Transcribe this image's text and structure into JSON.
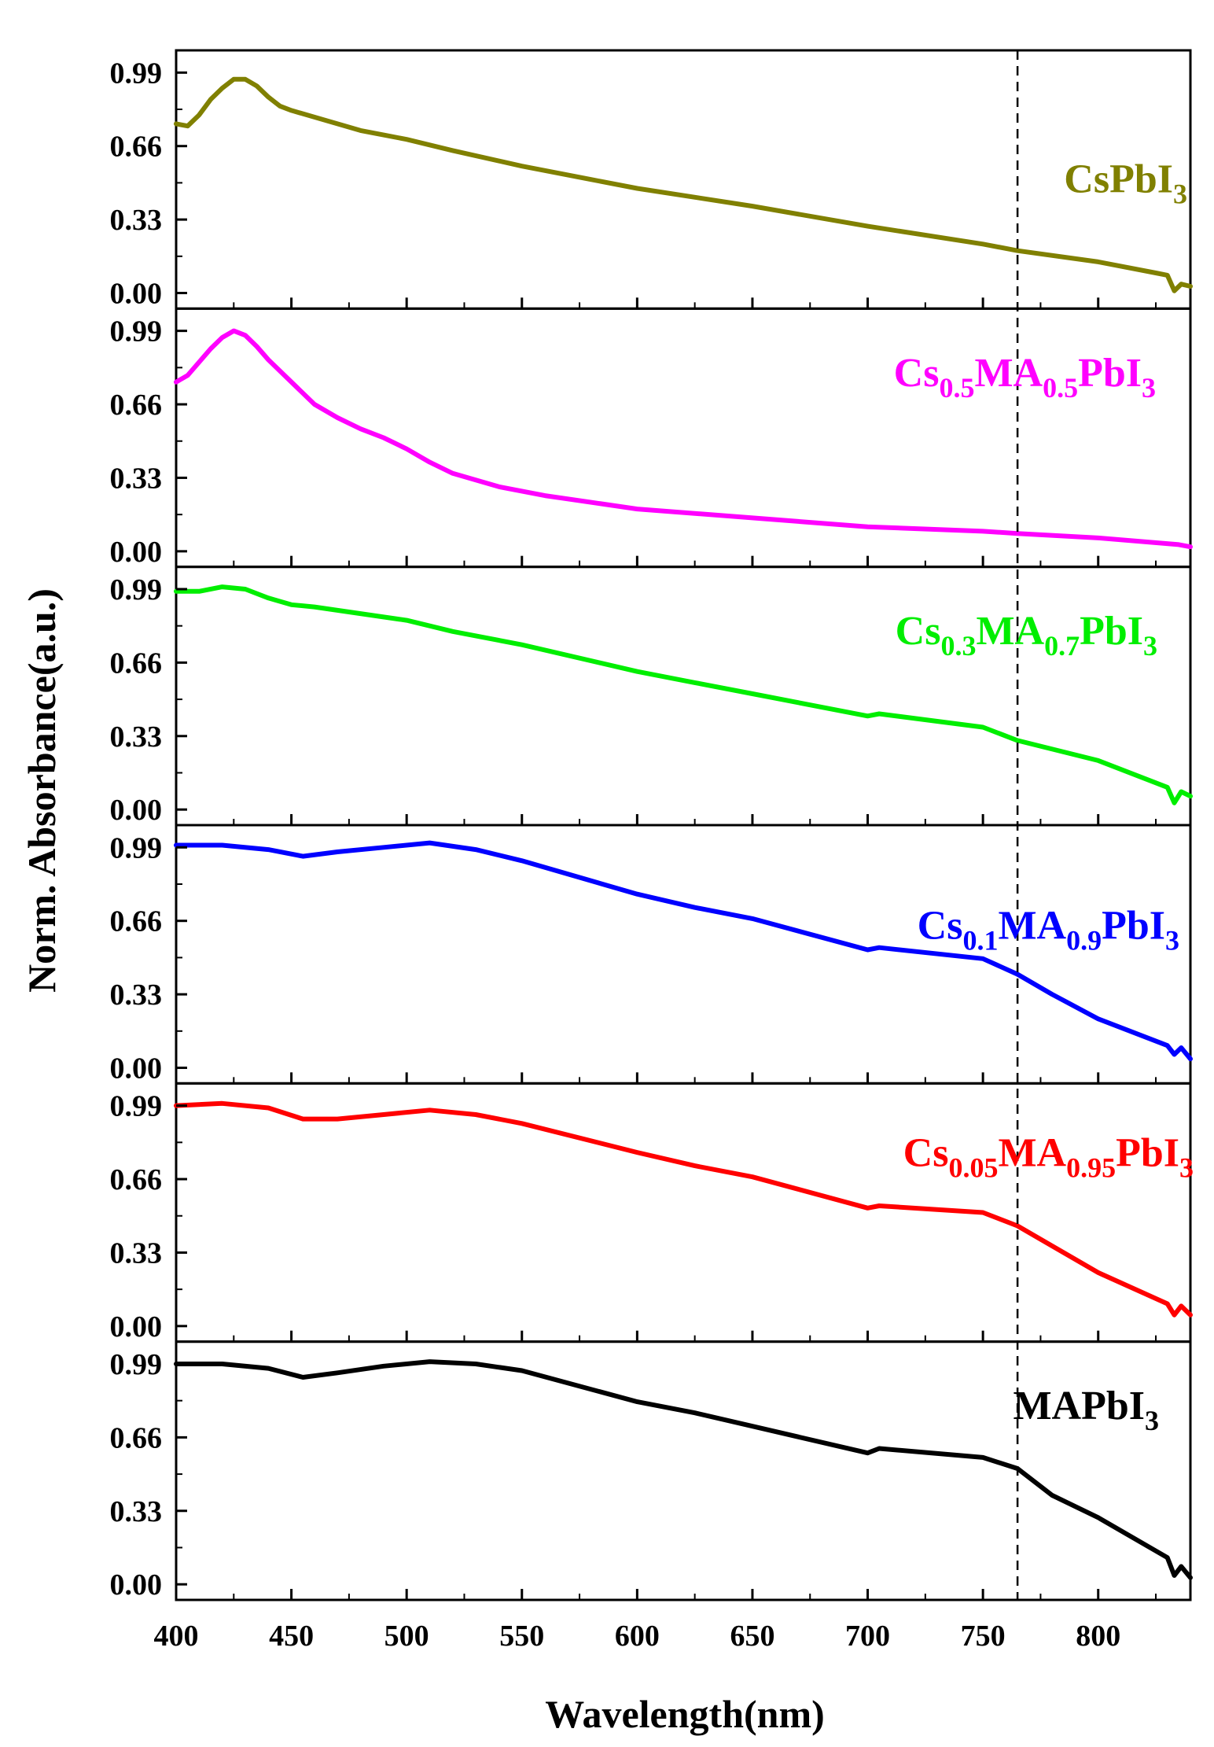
{
  "chart_data": {
    "type": "line",
    "layout": "stacked-panels",
    "xlabel": "Wavelength(nm)",
    "ylabel": "Norm. Absorbance(a.u.)",
    "xlim": [
      400,
      840
    ],
    "ylim": [
      -0.07,
      1.09
    ],
    "x_ticks": [
      400,
      450,
      500,
      550,
      600,
      650,
      700,
      750,
      800
    ],
    "y_ticks": [
      0.0,
      0.33,
      0.66,
      0.99
    ],
    "y_tick_labels": [
      "0.00",
      "0.33",
      "0.66",
      "0.99"
    ],
    "reference_line": {
      "x": 765,
      "style": "dashed",
      "color": "#000000"
    },
    "grid": false,
    "series": [
      {
        "name": "CsPbI3",
        "label_parts": [
          {
            "text": "CsPbI",
            "sub": false
          },
          {
            "text": "3",
            "sub": true
          }
        ],
        "color": "#808000",
        "x": [
          400,
          405,
          410,
          415,
          420,
          425,
          430,
          435,
          440,
          445,
          450,
          460,
          470,
          480,
          490,
          500,
          520,
          550,
          580,
          600,
          650,
          700,
          750,
          765,
          800,
          825,
          830,
          833,
          836,
          840
        ],
        "y": [
          0.76,
          0.75,
          0.8,
          0.87,
          0.92,
          0.96,
          0.96,
          0.93,
          0.88,
          0.84,
          0.82,
          0.79,
          0.76,
          0.73,
          0.71,
          0.69,
          0.64,
          0.57,
          0.51,
          0.47,
          0.39,
          0.3,
          0.22,
          0.19,
          0.14,
          0.09,
          0.08,
          0.01,
          0.04,
          0.03
        ]
      },
      {
        "name": "Cs0.5MA0.5PbI3",
        "label_parts": [
          {
            "text": "Cs",
            "sub": false
          },
          {
            "text": "0.5",
            "sub": true
          },
          {
            "text": "MA",
            "sub": false
          },
          {
            "text": "0.5",
            "sub": true
          },
          {
            "text": "PbI",
            "sub": false
          },
          {
            "text": "3",
            "sub": true
          }
        ],
        "color": "#ff00ff",
        "x": [
          400,
          405,
          410,
          415,
          420,
          425,
          430,
          435,
          440,
          450,
          460,
          470,
          480,
          490,
          500,
          510,
          520,
          540,
          560,
          600,
          650,
          700,
          750,
          765,
          800,
          835,
          840
        ],
        "y": [
          0.76,
          0.79,
          0.85,
          0.91,
          0.96,
          0.99,
          0.97,
          0.92,
          0.86,
          0.76,
          0.66,
          0.6,
          0.55,
          0.51,
          0.46,
          0.4,
          0.35,
          0.29,
          0.25,
          0.19,
          0.15,
          0.11,
          0.09,
          0.08,
          0.06,
          0.03,
          0.02
        ]
      },
      {
        "name": "Cs0.3MA0.7PbI3",
        "label_parts": [
          {
            "text": "Cs",
            "sub": false
          },
          {
            "text": "0.3",
            "sub": true
          },
          {
            "text": "MA",
            "sub": false
          },
          {
            "text": "0.7",
            "sub": true
          },
          {
            "text": "PbI",
            "sub": false
          },
          {
            "text": "3",
            "sub": true
          }
        ],
        "color": "#00ee00",
        "x": [
          400,
          410,
          420,
          430,
          440,
          450,
          460,
          480,
          500,
          520,
          550,
          600,
          625,
          650,
          700,
          705,
          750,
          765,
          800,
          830,
          833,
          836,
          840
        ],
        "y": [
          0.98,
          0.98,
          1.0,
          0.99,
          0.95,
          0.92,
          0.91,
          0.88,
          0.85,
          0.8,
          0.74,
          0.62,
          0.57,
          0.52,
          0.42,
          0.43,
          0.37,
          0.31,
          0.22,
          0.1,
          0.03,
          0.08,
          0.06
        ]
      },
      {
        "name": "Cs0.1MA0.9PbI3",
        "label_parts": [
          {
            "text": "Cs",
            "sub": false
          },
          {
            "text": "0.1",
            "sub": true
          },
          {
            "text": "MA",
            "sub": false
          },
          {
            "text": "0.9",
            "sub": true
          },
          {
            "text": "PbI",
            "sub": false
          },
          {
            "text": "3",
            "sub": true
          }
        ],
        "color": "#0000ff",
        "x": [
          400,
          420,
          440,
          455,
          470,
          490,
          510,
          530,
          550,
          600,
          625,
          650,
          700,
          705,
          750,
          765,
          780,
          800,
          830,
          833,
          836,
          840
        ],
        "y": [
          1.0,
          1.0,
          0.98,
          0.95,
          0.97,
          0.99,
          1.01,
          0.98,
          0.93,
          0.78,
          0.72,
          0.67,
          0.53,
          0.54,
          0.49,
          0.42,
          0.33,
          0.22,
          0.1,
          0.06,
          0.09,
          0.04
        ]
      },
      {
        "name": "Cs0.05MA0.95PbI3",
        "label_parts": [
          {
            "text": "Cs",
            "sub": false
          },
          {
            "text": "0.05",
            "sub": true
          },
          {
            "text": "MA",
            "sub": false
          },
          {
            "text": "0.95",
            "sub": true
          },
          {
            "text": "PbI",
            "sub": false
          },
          {
            "text": "3",
            "sub": true
          }
        ],
        "color": "#ff0000",
        "x": [
          400,
          420,
          440,
          455,
          470,
          490,
          510,
          530,
          550,
          600,
          625,
          650,
          700,
          705,
          750,
          765,
          780,
          800,
          830,
          833,
          836,
          840
        ],
        "y": [
          0.99,
          1.0,
          0.98,
          0.93,
          0.93,
          0.95,
          0.97,
          0.95,
          0.91,
          0.78,
          0.72,
          0.67,
          0.53,
          0.54,
          0.51,
          0.45,
          0.36,
          0.24,
          0.1,
          0.05,
          0.09,
          0.05
        ]
      },
      {
        "name": "MAPbI3",
        "label_parts": [
          {
            "text": "MAPbI",
            "sub": false
          },
          {
            "text": "3",
            "sub": true
          }
        ],
        "color": "#000000",
        "x": [
          400,
          420,
          440,
          455,
          470,
          490,
          510,
          530,
          550,
          600,
          625,
          650,
          700,
          705,
          750,
          765,
          780,
          800,
          830,
          833,
          836,
          840
        ],
        "y": [
          0.99,
          0.99,
          0.97,
          0.93,
          0.95,
          0.98,
          1.0,
          0.99,
          0.96,
          0.82,
          0.77,
          0.71,
          0.59,
          0.61,
          0.57,
          0.52,
          0.4,
          0.3,
          0.12,
          0.04,
          0.08,
          0.03
        ]
      }
    ]
  }
}
